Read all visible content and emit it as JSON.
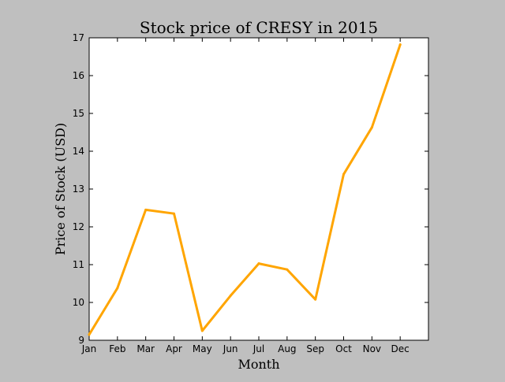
{
  "chart_data": {
    "type": "line",
    "title": "Stock price of CRESY in 2015",
    "xlabel": "Month",
    "ylabel": "Price of Stock (USD)",
    "categories": [
      "Jan",
      "Feb",
      "Mar",
      "Apr",
      "May",
      "Jun",
      "Jul",
      "Aug",
      "Sep",
      "Oct",
      "Nov",
      "Dec"
    ],
    "series": [
      {
        "values": [
          9.15,
          10.38,
          12.45,
          12.35,
          9.25,
          10.18,
          11.03,
          10.87,
          10.08,
          13.39,
          14.63,
          16.82
        ],
        "color": "#ffa500"
      }
    ],
    "ylim": [
      9,
      17
    ],
    "yticks": [
      9,
      10,
      11,
      12,
      13,
      14,
      15,
      16,
      17
    ],
    "xlim": [
      0,
      12
    ],
    "grid": false,
    "legend": "none",
    "colors": {
      "figure_background": "#bfbfbf",
      "plot_background": "#ffffff",
      "line": "#ffa500",
      "axes": "#000000"
    }
  }
}
